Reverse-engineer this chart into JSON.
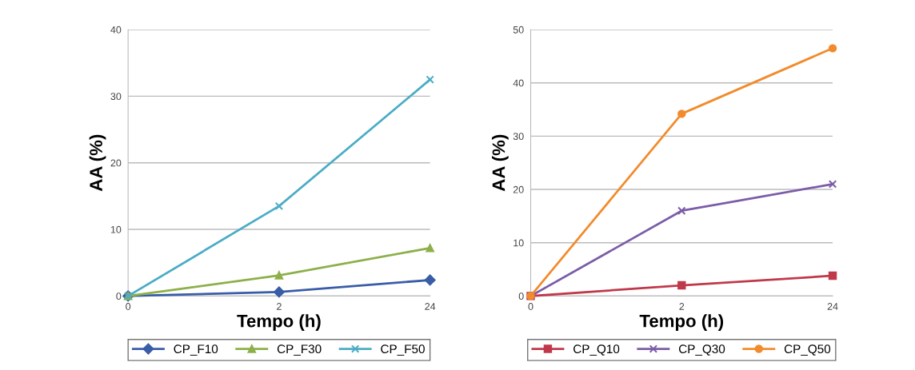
{
  "chart_data": [
    {
      "type": "line",
      "xlabel": "Tempo (h)",
      "ylabel": "AA (%)",
      "categories": [
        "0",
        "2",
        "24"
      ],
      "ylim": [
        0,
        40
      ],
      "yticks": [
        0,
        10,
        20,
        30,
        40
      ],
      "grid": "y",
      "legend": "bottom",
      "series": [
        {
          "name": "CP_F10",
          "color": "#3a5da8",
          "marker": "diamond",
          "values": [
            0,
            0.6,
            2.4
          ]
        },
        {
          "name": "CP_F30",
          "color": "#8db04a",
          "marker": "triangle",
          "values": [
            0,
            3.1,
            7.2
          ]
        },
        {
          "name": "CP_F50",
          "color": "#4bacc6",
          "marker": "cross",
          "values": [
            0,
            13.5,
            32.5
          ]
        }
      ]
    },
    {
      "type": "line",
      "xlabel": "Tempo (h)",
      "ylabel": "AA (%)",
      "categories": [
        "0",
        "2",
        "24"
      ],
      "ylim": [
        0,
        50
      ],
      "yticks": [
        0,
        10,
        20,
        30,
        40,
        50
      ],
      "grid": "y",
      "legend": "bottom",
      "series": [
        {
          "name": "CP_Q10",
          "color": "#c0394b",
          "marker": "square",
          "values": [
            0,
            2.0,
            3.8
          ]
        },
        {
          "name": "CP_Q30",
          "color": "#7b5ca8",
          "marker": "cross",
          "values": [
            0,
            16.0,
            21.0
          ]
        },
        {
          "name": "CP_Q50",
          "color": "#f28b2c",
          "marker": "circle",
          "values": [
            0,
            34.2,
            46.5
          ]
        }
      ]
    }
  ]
}
